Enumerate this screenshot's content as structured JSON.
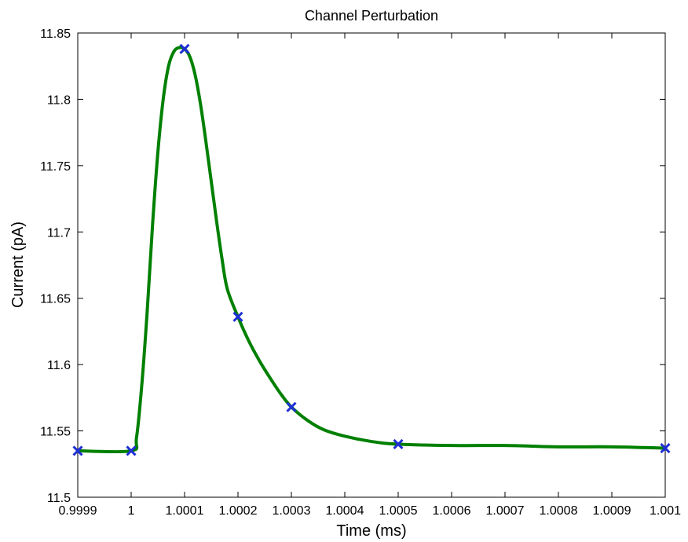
{
  "chart_data": {
    "type": "line",
    "title": "Channel Perturbation",
    "xlabel": "Time (ms)",
    "ylabel": "Current (pA)",
    "xlim": [
      0.9999,
      1.001
    ],
    "ylim": [
      11.5,
      11.85
    ],
    "x_ticks": [
      0.9999,
      1.0,
      1.0001,
      1.0002,
      1.0003,
      1.0004,
      1.0005,
      1.0006,
      1.0007,
      1.0008,
      1.0009,
      1.001
    ],
    "x_tick_labels": [
      "0.9999",
      "1",
      "1.0001",
      "1.0002",
      "1.0003",
      "1.0004",
      "1.0005",
      "1.0006",
      "1.0007",
      "1.0008",
      "1.0009",
      "1.001"
    ],
    "y_ticks": [
      11.5,
      11.55,
      11.6,
      11.65,
      11.7,
      11.75,
      11.8,
      11.85
    ],
    "y_tick_labels": [
      "11.5",
      "11.55",
      "11.6",
      "11.65",
      "11.7",
      "11.75",
      "11.8",
      "11.85"
    ],
    "grid": false,
    "series": [
      {
        "style": "line",
        "color": "#008000",
        "x": [
          0.9999,
          1.0,
          1.00001,
          1.00002,
          1.00003,
          1.00004,
          1.00005,
          1.00006,
          1.00007,
          1.00008,
          1.00009,
          1.0001,
          1.00011,
          1.00012,
          1.00013,
          1.00014,
          1.00015,
          1.00016,
          1.00017,
          1.00018,
          1.0002,
          1.00022,
          1.00024,
          1.00026,
          1.00028,
          1.0003,
          1.00033,
          1.00036,
          1.0004,
          1.00045,
          1.0005,
          1.0006,
          1.0007,
          1.0008,
          1.0009,
          1.001
        ],
        "y": [
          11.535,
          11.535,
          11.545,
          11.585,
          11.64,
          11.705,
          11.76,
          11.8,
          11.825,
          11.836,
          11.839,
          11.838,
          11.832,
          11.818,
          11.796,
          11.768,
          11.738,
          11.708,
          11.68,
          11.657,
          11.636,
          11.618,
          11.603,
          11.59,
          11.578,
          11.568,
          11.558,
          11.551,
          11.546,
          11.542,
          11.54,
          11.539,
          11.539,
          11.538,
          11.538,
          11.537
        ]
      },
      {
        "style": "markers",
        "marker": "x",
        "color": "#1f2fd6",
        "x": [
          0.9999,
          1.0,
          1.0001,
          1.0002,
          1.0003,
          1.0005,
          1.001
        ],
        "y": [
          11.535,
          11.535,
          11.838,
          11.636,
          11.568,
          11.54,
          11.537
        ]
      }
    ]
  }
}
